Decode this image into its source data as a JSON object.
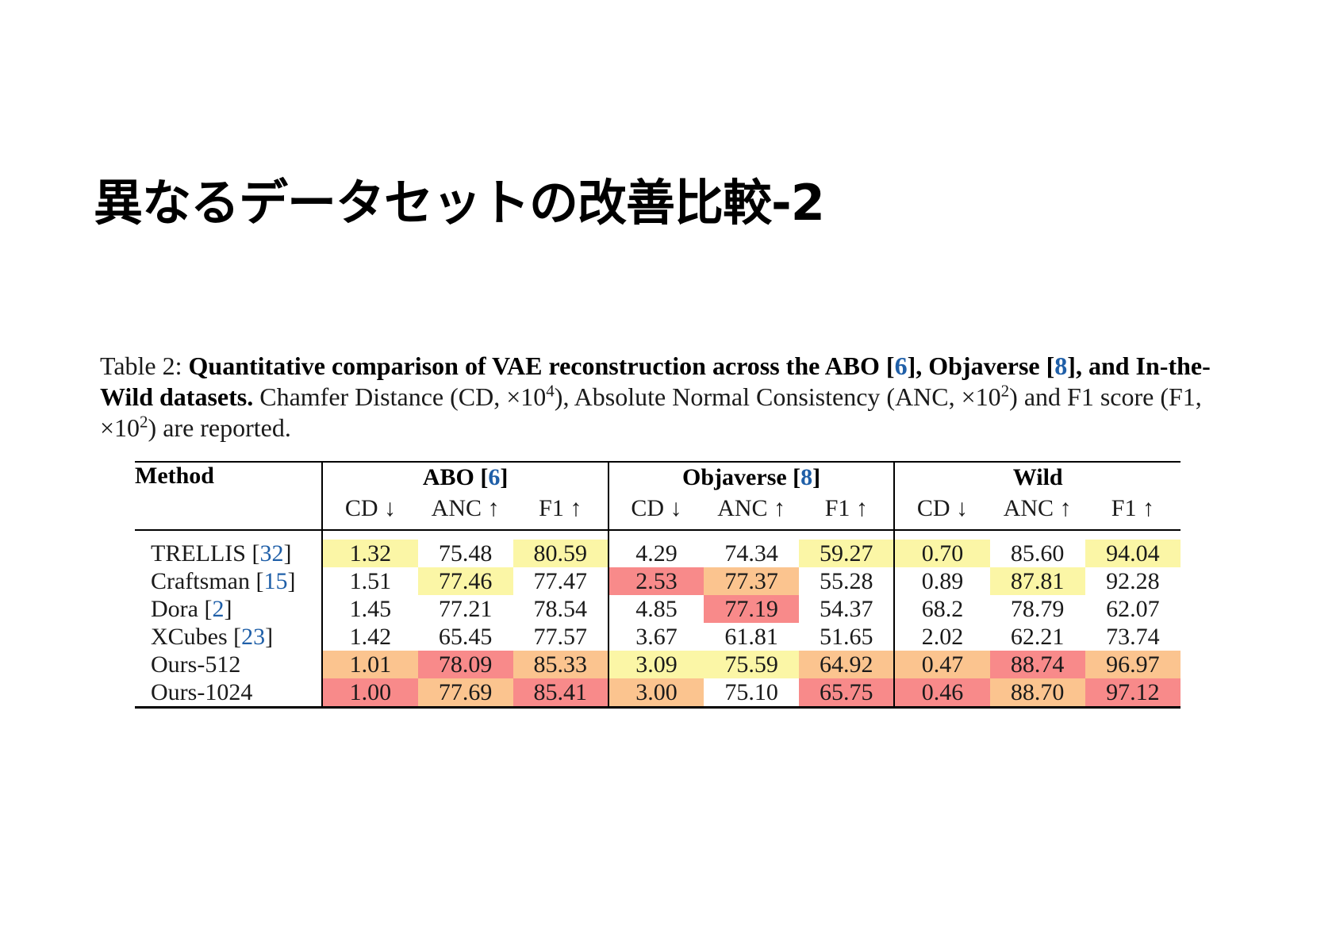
{
  "slide": {
    "title": "異なるデータセットの改善比較-2"
  },
  "caption": {
    "label": "Table 2:",
    "bold_text_1": "Quantitative comparison of VAE reconstruction across the ABO [",
    "cite_abo": "6",
    "bold_text_2": "], Objaverse [",
    "cite_objaverse": "8",
    "bold_text_3": "], and In-the-Wild datasets.",
    "text_1": "Chamfer Distance (CD, ×10",
    "sup_1": "4",
    "text_2": "), Absolute Normal Consistency (ANC, ×10",
    "sup_2": "2",
    "text_3": ") and F1 score (F1, ×10",
    "sup_3": "2",
    "text_4": ") are reported."
  },
  "table": {
    "method_header": "Method",
    "groups": [
      {
        "name": "ABO [",
        "cite": "6",
        "close": "]"
      },
      {
        "name": "Objaverse [",
        "cite": "8",
        "close": "]"
      },
      {
        "name": "Wild",
        "cite": "",
        "close": ""
      }
    ],
    "metrics": [
      "CD ↓",
      "ANC ↑",
      "F1 ↑",
      "CD ↓",
      "ANC ↑",
      "F1 ↑",
      "CD ↓",
      "ANC ↑",
      "F1 ↑"
    ],
    "rows": [
      {
        "method": "TRELLIS",
        "cite": "32",
        "values": [
          "1.32",
          "75.48",
          "80.59",
          "4.29",
          "74.34",
          "59.27",
          "0.70",
          "85.60",
          "94.04"
        ],
        "highlight": [
          "y",
          "",
          "y",
          "",
          "",
          "y",
          "y",
          "",
          "y"
        ]
      },
      {
        "method": "Craftsman",
        "cite": "15",
        "values": [
          "1.51",
          "77.46",
          "77.47",
          "2.53",
          "77.37",
          "55.28",
          "0.89",
          "87.81",
          "92.28"
        ],
        "highlight": [
          "",
          "y",
          "",
          "r",
          "o",
          "",
          "",
          "y",
          ""
        ]
      },
      {
        "method": "Dora",
        "cite": "2",
        "values": [
          "1.45",
          "77.21",
          "78.54",
          "4.85",
          "77.19",
          "54.37",
          "68.2",
          "78.79",
          "62.07"
        ],
        "highlight": [
          "",
          "",
          "",
          "",
          "r",
          "",
          "",
          "",
          ""
        ]
      },
      {
        "method": "XCubes",
        "cite": "23",
        "values": [
          "1.42",
          "65.45",
          "77.57",
          "3.67",
          "61.81",
          "51.65",
          "2.02",
          "62.21",
          "73.74"
        ],
        "highlight": [
          "",
          "",
          "",
          "",
          "",
          "",
          "",
          "",
          ""
        ]
      },
      {
        "method": "Ours-512",
        "cite": "",
        "values": [
          "1.01",
          "78.09",
          "85.33",
          "3.09",
          "75.59",
          "64.92",
          "0.47",
          "88.74",
          "96.97"
        ],
        "highlight": [
          "o",
          "r",
          "o",
          "y",
          "y",
          "o",
          "o",
          "r",
          "o"
        ]
      },
      {
        "method": "Ours-1024",
        "cite": "",
        "values": [
          "1.00",
          "77.69",
          "85.41",
          "3.00",
          "75.10",
          "65.75",
          "0.46",
          "88.70",
          "97.12"
        ],
        "highlight": [
          "r",
          "o",
          "r",
          "o",
          "",
          "r",
          "r",
          "o",
          "r"
        ]
      }
    ]
  },
  "colors": {
    "highlight_yellow": "#fbf6a6",
    "highlight_orange": "#fbc48f",
    "highlight_red": "#f88a8a",
    "citation_blue": "#1f5fa8"
  }
}
